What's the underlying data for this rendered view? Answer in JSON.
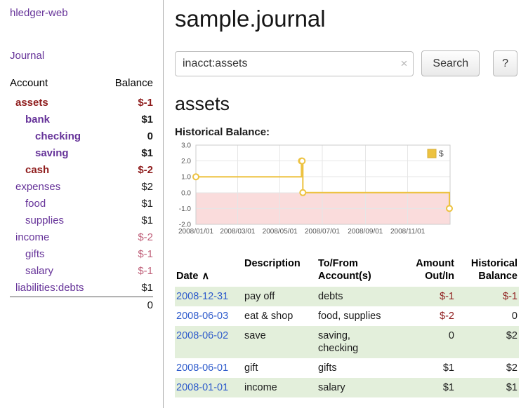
{
  "colors": {
    "link_purple": "#663399",
    "date_link_blue": "#2e5bcb",
    "negative_dark_red": "#8f1d1d",
    "negative_light_red": "#c0607a",
    "row_stripe_green": "#e3efdb",
    "chart_line_gold": "#EDC240",
    "chart_negative_region_pink": "#fadcdc"
  },
  "app": {
    "brand": "hledger-web",
    "nav": {
      "journal": "Journal"
    }
  },
  "sidebar": {
    "header": {
      "account": "Account",
      "balance": "Balance"
    },
    "accounts": [
      {
        "name": "assets",
        "balance": "$-1"
      },
      {
        "name": "bank",
        "balance": "$1"
      },
      {
        "name": "checking",
        "balance": "0"
      },
      {
        "name": "saving",
        "balance": "$1"
      },
      {
        "name": "cash",
        "balance": "$-2"
      },
      {
        "name": "expenses",
        "balance": "$2"
      },
      {
        "name": "food",
        "balance": "$1"
      },
      {
        "name": "supplies",
        "balance": "$1"
      },
      {
        "name": "income",
        "balance": "$-2"
      },
      {
        "name": "gifts",
        "balance": "$-1"
      },
      {
        "name": "salary",
        "balance": "$-1"
      },
      {
        "name": "liabilities:debts",
        "balance": "$1"
      }
    ],
    "total": "0"
  },
  "main": {
    "title": "sample.journal",
    "search": {
      "value": "inacct:assets",
      "clear_icon": "×",
      "search_button": "Search",
      "help_button": "?"
    },
    "account_heading": "assets",
    "chart_title": "Historical Balance:"
  },
  "chart_data": {
    "type": "line",
    "title": "Historical Balance",
    "style": "step",
    "legend": {
      "position": "top-right",
      "entries": [
        "$"
      ]
    },
    "xlim": [
      "2008-01-01",
      "2009-01-01"
    ],
    "ylim": [
      -2,
      3
    ],
    "yticks": [
      3.0,
      2.0,
      1.0,
      0.0,
      -1.0,
      -2.0
    ],
    "xticks": [
      "2008-01-01",
      "2008-03-01",
      "2008-05-01",
      "2008-07-01",
      "2008-09-01",
      "2008-11-01"
    ],
    "xtick_labels": [
      "2008/01/01",
      "2008/03/01",
      "2008/05/01",
      "2008/07/01",
      "2008/09/01",
      "2008/11/01"
    ],
    "grid": true,
    "series": [
      {
        "name": "$",
        "points": [
          [
            "2008-01-01",
            1
          ],
          [
            "2008-06-01",
            2
          ],
          [
            "2008-06-02",
            2
          ],
          [
            "2008-06-03",
            0
          ],
          [
            "2008-12-31",
            -1
          ]
        ]
      }
    ],
    "colors": {
      "line": "#EDC240",
      "negative_region": "#fadcdc"
    }
  },
  "register": {
    "headers": {
      "date": "Date",
      "sort_icon": "∧",
      "description": "Description",
      "accounts": "To/From\nAccount(s)",
      "amount": "Amount\nOut/In",
      "balance": "Historical\nBalance"
    },
    "rows": [
      {
        "date": "2008-12-31",
        "description": "pay off",
        "accounts": "debts",
        "amount": "$-1",
        "balance": "$-1"
      },
      {
        "date": "2008-06-03",
        "description": "eat & shop",
        "accounts": "food, supplies",
        "amount": "$-2",
        "balance": "0"
      },
      {
        "date": "2008-06-02",
        "description": "save",
        "accounts": [
          "saving,",
          "checking"
        ],
        "amount": "0",
        "balance": "$2"
      },
      {
        "date": "2008-06-01",
        "description": "gift",
        "accounts": "gifts",
        "amount": "$1",
        "balance": "$2"
      },
      {
        "date": "2008-01-01",
        "description": "income",
        "accounts": "salary",
        "amount": "$1",
        "balance": "$1"
      }
    ]
  }
}
